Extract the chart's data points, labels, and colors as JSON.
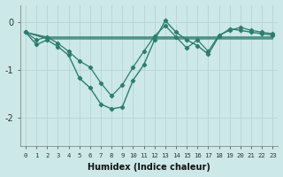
{
  "xlabel": "Humidex (Indice chaleur)",
  "background_color": "#cce8e8",
  "grid_color": "#b8d8d8",
  "line_color": "#2d7d6e",
  "xlim": [
    -0.5,
    23.5
  ],
  "ylim": [
    -2.6,
    0.35
  ],
  "xticks": [
    0,
    1,
    2,
    3,
    4,
    5,
    6,
    7,
    8,
    9,
    10,
    11,
    12,
    13,
    14,
    15,
    16,
    17,
    18,
    19,
    20,
    21,
    22,
    23
  ],
  "yticks": [
    0,
    -1,
    -2
  ],
  "line_main_x": [
    0,
    1,
    2,
    3,
    4,
    5,
    6,
    7,
    8,
    9,
    10,
    11,
    12,
    13,
    14,
    15,
    16,
    17,
    18,
    19,
    20,
    21,
    22,
    23
  ],
  "line_main_y": [
    -0.22,
    -0.48,
    -0.38,
    -0.52,
    -0.7,
    -1.18,
    -1.38,
    -1.72,
    -1.82,
    -1.78,
    -1.22,
    -0.9,
    -0.38,
    0.02,
    -0.22,
    -0.38,
    -0.5,
    -0.68,
    -0.3,
    -0.15,
    -0.18,
    -0.22,
    -0.25,
    -0.28
  ],
  "line_flat1_x": [
    0,
    2,
    3,
    4,
    5,
    6,
    7,
    8,
    9,
    10,
    11,
    12,
    13,
    14,
    15,
    16,
    17,
    18,
    19,
    20,
    21,
    22,
    23
  ],
  "line_flat1_y": [
    -0.22,
    -0.32,
    -0.32,
    -0.32,
    -0.32,
    -0.32,
    -0.32,
    -0.32,
    -0.32,
    -0.32,
    -0.32,
    -0.32,
    -0.32,
    -0.32,
    -0.32,
    -0.32,
    -0.32,
    -0.32,
    -0.32,
    -0.32,
    -0.32,
    -0.32,
    -0.32
  ],
  "line_flat2_x": [
    0,
    2,
    3,
    4,
    5,
    6,
    7,
    8,
    9,
    10,
    11,
    12,
    13,
    14,
    15,
    16,
    17,
    18,
    19,
    20,
    21,
    22,
    23
  ],
  "line_flat2_y": [
    -0.22,
    -0.34,
    -0.34,
    -0.34,
    -0.34,
    -0.34,
    -0.34,
    -0.34,
    -0.34,
    -0.34,
    -0.34,
    -0.34,
    -0.34,
    -0.34,
    -0.34,
    -0.34,
    -0.34,
    -0.34,
    -0.34,
    -0.34,
    -0.34,
    -0.34,
    -0.34
  ],
  "line_flat3_x": [
    0,
    2,
    3,
    4,
    5,
    6,
    7,
    8,
    9,
    10,
    11,
    12,
    13,
    14,
    15,
    16,
    17,
    18,
    19,
    20,
    21,
    22,
    23
  ],
  "line_flat3_y": [
    -0.22,
    -0.36,
    -0.36,
    -0.36,
    -0.36,
    -0.36,
    -0.36,
    -0.36,
    -0.36,
    -0.36,
    -0.36,
    -0.36,
    -0.36,
    -0.36,
    -0.36,
    -0.36,
    -0.36,
    -0.36,
    -0.36,
    -0.36,
    -0.36,
    -0.36,
    -0.36
  ],
  "line_zigzag_x": [
    0,
    1,
    2,
    3,
    4,
    5,
    6,
    7,
    8,
    9,
    10,
    11,
    12,
    13,
    14,
    15,
    16,
    17,
    18,
    19,
    20,
    21,
    22,
    23
  ],
  "line_zigzag_y": [
    -0.22,
    -0.38,
    -0.32,
    -0.45,
    -0.62,
    -0.82,
    -0.95,
    -1.28,
    -1.55,
    -1.32,
    -0.95,
    -0.62,
    -0.3,
    -0.08,
    -0.32,
    -0.55,
    -0.38,
    -0.62,
    -0.28,
    -0.18,
    -0.12,
    -0.18,
    -0.22,
    -0.25
  ]
}
